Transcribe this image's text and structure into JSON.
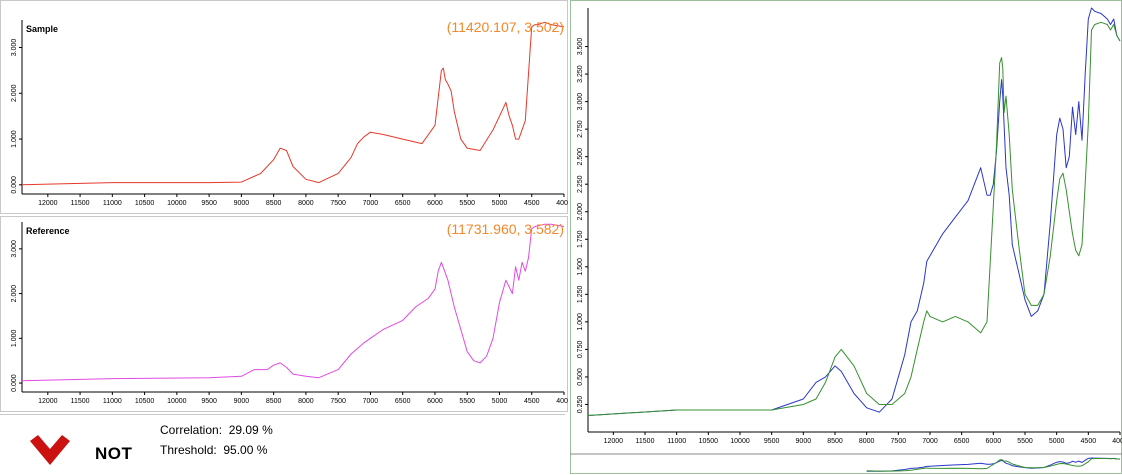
{
  "colors": {
    "sample": "#e5392b",
    "reference": "#e24ae3",
    "overlay_blue": "#2a37c9",
    "overlay_green": "#36912e",
    "coord_text": "#f5872a",
    "status_red": "#cc1111"
  },
  "result": {
    "status": "NOT",
    "correlation_label": "Correlation:",
    "correlation_value": "29.09 %",
    "threshold_label": "Threshold:",
    "threshold_value": "95.00 %",
    "status_icon": "red-check-icon"
  },
  "chart_data": [
    {
      "type": "line",
      "title": "Sample",
      "cursor_readout": "(11420.107, 3.502)",
      "xlim": [
        12400,
        4000
      ],
      "ylim": [
        -0.2,
        3.6
      ],
      "x_ticks": [
        "12000",
        "11500",
        "11000",
        "10500",
        "10000",
        "9500",
        "9000",
        "8500",
        "8000",
        "7500",
        "7000",
        "6500",
        "6000",
        "5500",
        "5000",
        "4500",
        "4000"
      ],
      "y_ticks": [
        "0.000",
        "1.000",
        "2.000",
        "3.000"
      ],
      "series": [
        {
          "color": "#e5392b",
          "x": [
            12400,
            11000,
            9500,
            9000,
            8700,
            8500,
            8400,
            8300,
            8200,
            8000,
            7800,
            7500,
            7300,
            7200,
            7100,
            7000,
            6800,
            6500,
            6200,
            6000,
            5950,
            5900,
            5870,
            5840,
            5800,
            5750,
            5700,
            5600,
            5500,
            5300,
            5100,
            5000,
            4900,
            4850,
            4800,
            4750,
            4700,
            4600,
            4500,
            4450,
            4400,
            4300,
            4200,
            4000
          ],
          "y": [
            0.0,
            0.05,
            0.05,
            0.06,
            0.25,
            0.55,
            0.8,
            0.75,
            0.4,
            0.12,
            0.05,
            0.25,
            0.6,
            0.9,
            1.05,
            1.15,
            1.1,
            1.0,
            0.9,
            1.3,
            1.9,
            2.5,
            2.55,
            2.3,
            2.2,
            2.05,
            1.6,
            1.0,
            0.8,
            0.75,
            1.2,
            1.5,
            1.8,
            1.5,
            1.3,
            1.0,
            1.0,
            1.4,
            3.45,
            3.5,
            3.5,
            3.55,
            3.5,
            3.45
          ]
        }
      ]
    },
    {
      "type": "line",
      "title": "Reference",
      "cursor_readout": "(11731.960, 3.582)",
      "xlim": [
        12400,
        4000
      ],
      "ylim": [
        -0.2,
        3.6
      ],
      "x_ticks": [
        "12000",
        "11500",
        "11000",
        "10500",
        "10000",
        "9500",
        "9000",
        "8500",
        "8000",
        "7500",
        "7000",
        "6500",
        "6000",
        "5500",
        "5000",
        "4500",
        "4000"
      ],
      "y_ticks": [
        "0.000",
        "1.000",
        "2.000",
        "3.000"
      ],
      "series": [
        {
          "color": "#e24ae3",
          "x": [
            12400,
            11000,
            9500,
            9000,
            8800,
            8600,
            8500,
            8400,
            8300,
            8200,
            8000,
            7800,
            7500,
            7300,
            7100,
            7000,
            6800,
            6500,
            6300,
            6100,
            6000,
            5950,
            5900,
            5800,
            5700,
            5600,
            5500,
            5400,
            5300,
            5200,
            5100,
            5000,
            4900,
            4800,
            4750,
            4700,
            4650,
            4600,
            4550,
            4500,
            4450,
            4300,
            4200,
            4000
          ],
          "y": [
            0.05,
            0.1,
            0.12,
            0.15,
            0.3,
            0.3,
            0.4,
            0.45,
            0.35,
            0.2,
            0.15,
            0.12,
            0.3,
            0.65,
            0.9,
            1.0,
            1.2,
            1.4,
            1.7,
            1.9,
            2.1,
            2.5,
            2.7,
            2.3,
            1.7,
            1.2,
            0.7,
            0.5,
            0.45,
            0.6,
            1.0,
            1.8,
            2.3,
            2.0,
            2.6,
            2.3,
            2.7,
            2.5,
            2.8,
            3.45,
            3.5,
            3.55,
            3.55,
            3.5
          ]
        }
      ]
    },
    {
      "type": "line",
      "xlim": [
        12400,
        4000
      ],
      "ylim": [
        0,
        3.85
      ],
      "x_ticks": [
        "12000",
        "11500",
        "11000",
        "10500",
        "10000",
        "9500",
        "9000",
        "8500",
        "8000",
        "7500",
        "7000",
        "6500",
        "6000",
        "5500",
        "5000",
        "4500",
        "4000"
      ],
      "y_ticks": [
        "0.250",
        "0.500",
        "0.750",
        "1.000",
        "1.250",
        "1.500",
        "1.750",
        "2.000",
        "2.250",
        "2.500",
        "2.750",
        "3.000",
        "3.250",
        "3.500"
      ],
      "series": [
        {
          "color": "#2a37c9",
          "x": [
            12400,
            11000,
            10000,
            9500,
            9000,
            8800,
            8650,
            8500,
            8400,
            8200,
            8000,
            7800,
            7600,
            7400,
            7300,
            7200,
            7100,
            7050,
            7000,
            6800,
            6600,
            6400,
            6200,
            6100,
            6050,
            6000,
            5950,
            5900,
            5870,
            5850,
            5800,
            5750,
            5700,
            5600,
            5500,
            5400,
            5300,
            5200,
            5100,
            5000,
            4950,
            4900,
            4850,
            4800,
            4750,
            4700,
            4650,
            4600,
            4550,
            4500,
            4450,
            4400,
            4300,
            4200,
            4150,
            4100,
            4050,
            4000
          ],
          "y": [
            0.15,
            0.2,
            0.2,
            0.2,
            0.3,
            0.45,
            0.5,
            0.6,
            0.55,
            0.35,
            0.22,
            0.18,
            0.3,
            0.7,
            1.0,
            1.1,
            1.35,
            1.55,
            1.6,
            1.8,
            1.95,
            2.1,
            2.4,
            2.15,
            2.15,
            2.25,
            2.55,
            3.0,
            3.2,
            3.05,
            2.4,
            2.15,
            1.7,
            1.45,
            1.2,
            1.05,
            1.1,
            1.25,
            1.9,
            2.7,
            2.85,
            2.75,
            2.4,
            2.5,
            2.95,
            2.7,
            3.0,
            2.65,
            3.25,
            3.75,
            3.85,
            3.82,
            3.8,
            3.75,
            3.7,
            3.75,
            3.6,
            3.55
          ]
        },
        {
          "color": "#36912e",
          "x": [
            12400,
            11000,
            10000,
            9500,
            9000,
            8800,
            8650,
            8500,
            8400,
            8200,
            8000,
            7800,
            7600,
            7400,
            7300,
            7200,
            7100,
            7050,
            7000,
            6800,
            6600,
            6400,
            6200,
            6100,
            6000,
            5950,
            5900,
            5870,
            5850,
            5830,
            5800,
            5750,
            5700,
            5600,
            5500,
            5400,
            5300,
            5200,
            5100,
            5000,
            4950,
            4900,
            4850,
            4800,
            4750,
            4700,
            4650,
            4600,
            4500,
            4450,
            4400,
            4300,
            4200,
            4150,
            4100,
            4050,
            4000
          ],
          "y": [
            0.15,
            0.2,
            0.2,
            0.2,
            0.25,
            0.3,
            0.45,
            0.68,
            0.75,
            0.6,
            0.35,
            0.25,
            0.25,
            0.35,
            0.5,
            0.75,
            1.0,
            1.1,
            1.05,
            1.0,
            1.05,
            1.0,
            0.9,
            1.0,
            2.05,
            2.6,
            3.35,
            3.4,
            3.3,
            2.9,
            3.05,
            2.7,
            2.2,
            1.7,
            1.25,
            1.15,
            1.15,
            1.25,
            1.6,
            2.1,
            2.3,
            2.35,
            2.2,
            2.0,
            1.8,
            1.65,
            1.6,
            1.7,
            2.8,
            3.65,
            3.7,
            3.72,
            3.7,
            3.65,
            3.7,
            3.6,
            3.55
          ]
        }
      ]
    }
  ]
}
